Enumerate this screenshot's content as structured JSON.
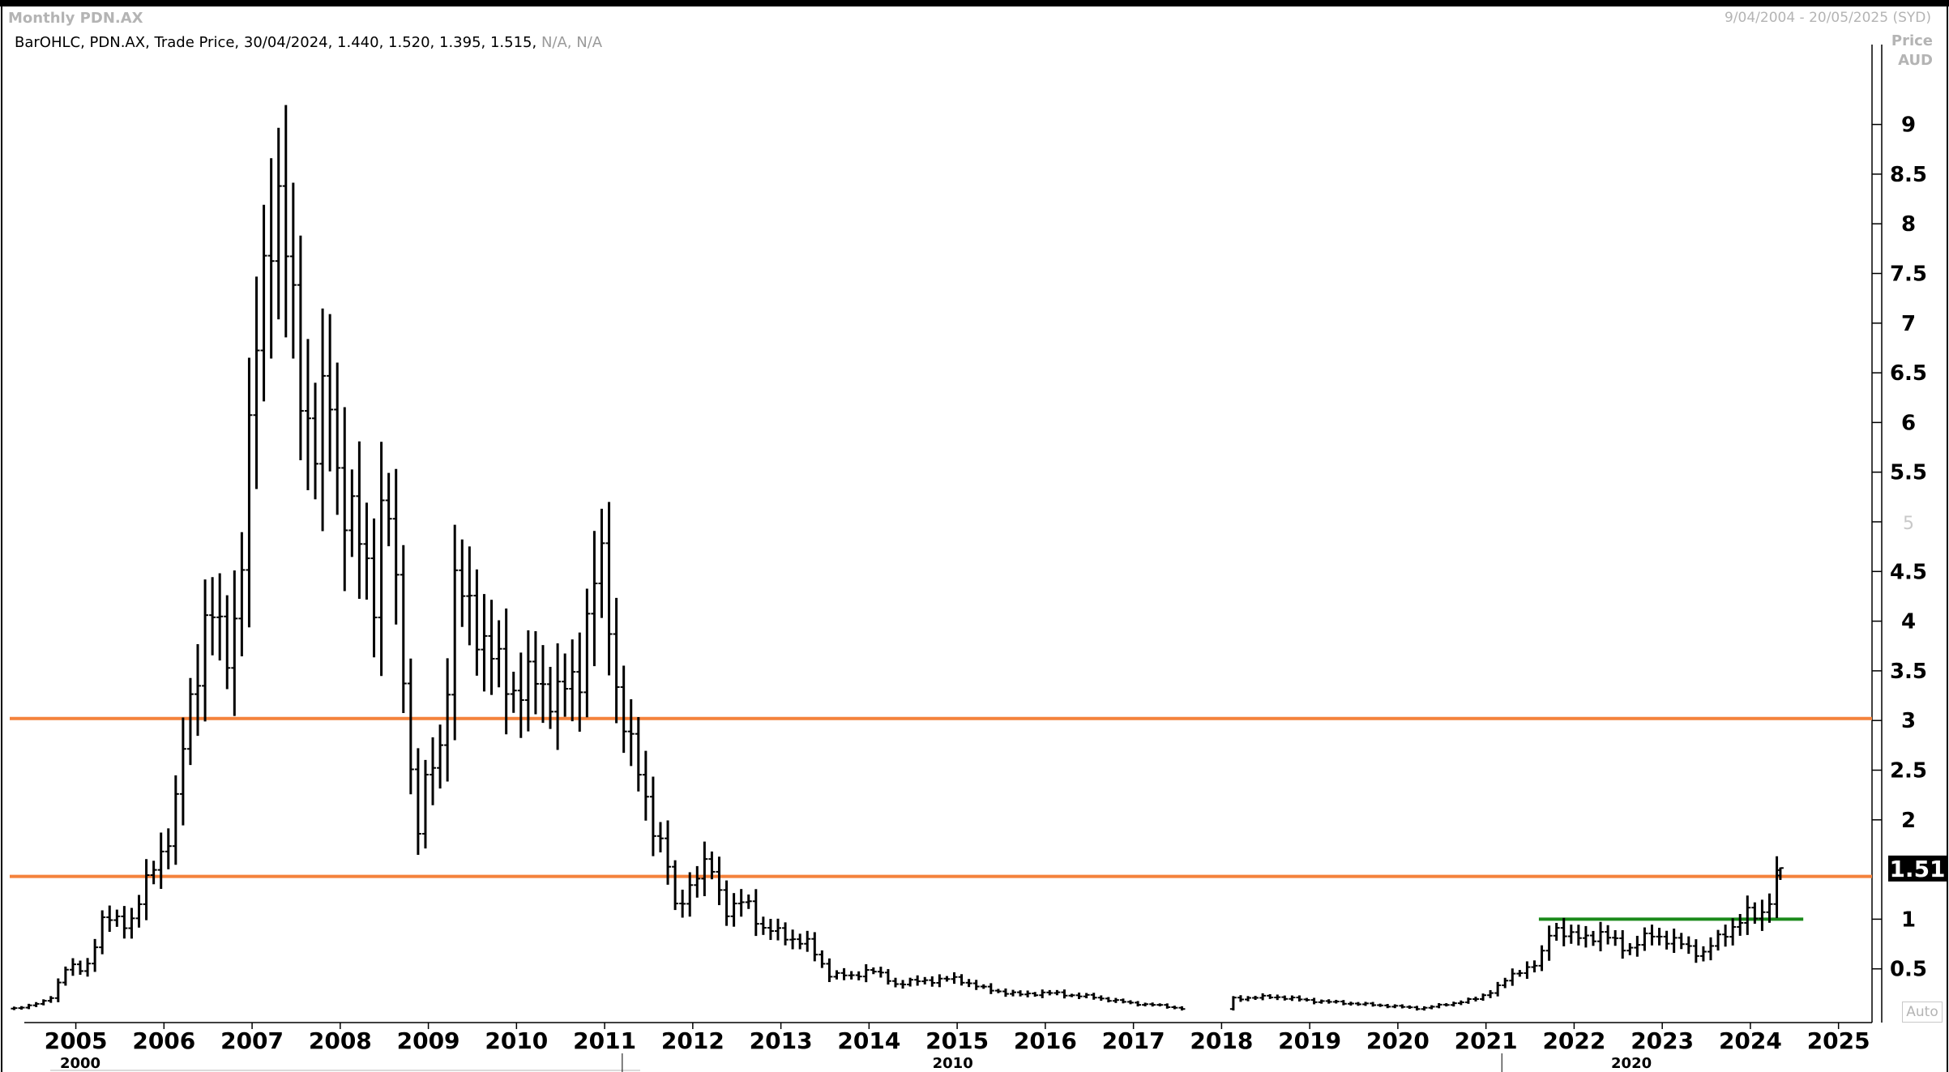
{
  "window": {
    "title": "Monthly PDN.AX",
    "date_range": "9/04/2004 - 20/05/2025 (SYD)"
  },
  "legend": {
    "text": "BarOHLC, PDN.AX, Trade Price, 30/04/2024, 1.440, 1.520, 1.395, 1.515,",
    "na": "N/A, N/A"
  },
  "axis": {
    "price_label": "Price",
    "currency_label": "AUD",
    "auto_label": "Auto"
  },
  "colors": {
    "bars": "#000000",
    "resistance": "#f4823c",
    "support": "#1a8a1a",
    "last_price_bg": "#000000"
  },
  "chart_data": {
    "type": "ohlc",
    "title": "Monthly PDN.AX",
    "ylabel": "Price AUD",
    "ylim": [
      0,
      9.7
    ],
    "xlim": [
      2004.25,
      2025.38
    ],
    "y_ticks": [
      "9",
      "8.5",
      "8",
      "7.5",
      "7",
      "6.5",
      "6",
      "5.5",
      "5",
      "4.5",
      "4",
      "3.5",
      "3",
      "2.5",
      "2",
      "1",
      "0.5"
    ],
    "x_ticks": [
      "2005",
      "2006",
      "2007",
      "2008",
      "2009",
      "2010",
      "2011",
      "2012",
      "2013",
      "2014",
      "2015",
      "2016",
      "2017",
      "2018",
      "2019",
      "2020",
      "2021",
      "2022",
      "2023",
      "2024",
      "2025"
    ],
    "decade_labels": [
      {
        "label": "2000",
        "x": 2005.05
      },
      {
        "label": "2010",
        "x": 2014.95
      },
      {
        "label": "2020",
        "x": 2022.65
      }
    ],
    "last_price": "1.51",
    "last_bar": {
      "date": "30/04/2024",
      "open": 1.44,
      "high": 1.52,
      "low": 1.395,
      "close": 1.515
    },
    "lines": [
      {
        "name": "resistance-3",
        "color": "#f4823c",
        "y": 3.02,
        "x": [
          2004.25,
          2025.38
        ]
      },
      {
        "name": "resistance-1.4",
        "color": "#f4823c",
        "y": 1.43,
        "x": [
          2004.25,
          2025.38
        ]
      },
      {
        "name": "support-1.0",
        "color": "#1a8a1a",
        "y": 1.0,
        "x": [
          2021.6,
          2024.6
        ]
      }
    ],
    "keypoints": [
      [
        2004.3,
        0.1
      ],
      [
        2004.7,
        0.18
      ],
      [
        2004.9,
        0.55
      ],
      [
        2005.1,
        0.45
      ],
      [
        2005.3,
        1.0
      ],
      [
        2005.6,
        0.95
      ],
      [
        2005.9,
        1.55
      ],
      [
        2006.1,
        1.95
      ],
      [
        2006.25,
        2.9
      ],
      [
        2006.5,
        4.2
      ],
      [
        2006.7,
        3.6
      ],
      [
        2006.85,
        4.3
      ],
      [
        2007.0,
        6.1
      ],
      [
        2007.1,
        7.4
      ],
      [
        2007.25,
        8.4
      ],
      [
        2007.4,
        7.5
      ],
      [
        2007.6,
        6.2
      ],
      [
        2007.75,
        5.5
      ],
      [
        2007.85,
        6.6
      ],
      [
        2008.0,
        5.3
      ],
      [
        2008.2,
        4.8
      ],
      [
        2008.4,
        4.3
      ],
      [
        2008.5,
        5.5
      ],
      [
        2008.6,
        4.5
      ],
      [
        2008.75,
        3.3
      ],
      [
        2008.85,
        1.75
      ],
      [
        2009.0,
        2.45
      ],
      [
        2009.15,
        2.8
      ],
      [
        2009.3,
        4.3
      ],
      [
        2009.5,
        4.1
      ],
      [
        2009.75,
        3.55
      ],
      [
        2010.0,
        3.3
      ],
      [
        2010.2,
        3.4
      ],
      [
        2010.5,
        3.25
      ],
      [
        2010.7,
        3.4
      ],
      [
        2010.85,
        4.4
      ],
      [
        2011.0,
        4.5
      ],
      [
        2011.1,
        3.5
      ],
      [
        2011.3,
        2.7
      ],
      [
        2011.5,
        2.1
      ],
      [
        2011.7,
        1.6
      ],
      [
        2011.8,
        1.1
      ],
      [
        2012.0,
        1.4
      ],
      [
        2012.2,
        1.55
      ],
      [
        2012.4,
        1.05
      ],
      [
        2012.6,
        1.2
      ],
      [
        2012.8,
        0.9
      ],
      [
        2013.0,
        0.85
      ],
      [
        2013.3,
        0.75
      ],
      [
        2013.55,
        0.45
      ],
      [
        2013.8,
        0.42
      ],
      [
        2014.0,
        0.5
      ],
      [
        2014.3,
        0.35
      ],
      [
        2014.6,
        0.38
      ],
      [
        2015.0,
        0.4
      ],
      [
        2015.3,
        0.3
      ],
      [
        2015.7,
        0.24
      ],
      [
        2016.0,
        0.26
      ],
      [
        2016.5,
        0.22
      ],
      [
        2017.0,
        0.15
      ],
      [
        2017.2,
        0.14
      ],
      [
        2017.55,
        0.1
      ],
      [
        2018.1,
        0.2
      ],
      [
        2018.6,
        0.22
      ],
      [
        2019.0,
        0.18
      ],
      [
        2019.5,
        0.15
      ],
      [
        2020.0,
        0.12
      ],
      [
        2020.25,
        0.1
      ],
      [
        2020.6,
        0.15
      ],
      [
        2020.9,
        0.2
      ],
      [
        2021.1,
        0.3
      ],
      [
        2021.4,
        0.5
      ],
      [
        2021.6,
        0.55
      ],
      [
        2021.75,
        0.95
      ],
      [
        2022.0,
        0.8
      ],
      [
        2022.3,
        0.85
      ],
      [
        2022.6,
        0.7
      ],
      [
        2022.9,
        0.85
      ],
      [
        2023.2,
        0.75
      ],
      [
        2023.45,
        0.65
      ],
      [
        2023.7,
        0.85
      ],
      [
        2023.95,
        1.05
      ],
      [
        2024.1,
        1.0
      ],
      [
        2024.25,
        1.3
      ],
      [
        2024.33,
        1.515
      ]
    ],
    "gap": [
      2017.6,
      2018.05
    ]
  }
}
